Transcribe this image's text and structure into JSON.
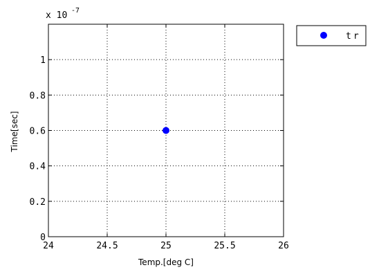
{
  "chart_data": {
    "type": "scatter",
    "title": "",
    "xlabel": "Temp.[deg C]",
    "ylabel": "Time[sec]",
    "xlim": [
      24,
      26
    ],
    "ylim": [
      0,
      1.2
    ],
    "x_ticks": [
      24,
      24.5,
      25,
      25.5,
      26
    ],
    "x_tick_labels": [
      "24",
      "24.5",
      "25",
      "25.5",
      "26"
    ],
    "y_ticks": [
      0,
      0.2,
      0.4,
      0.6,
      0.8,
      1
    ],
    "y_tick_labels": [
      "0",
      "0.2",
      "0.4",
      "0.6",
      "0.8",
      "1"
    ],
    "y_multiplier": {
      "base": "x 10",
      "exponent": "-7"
    },
    "grid": true,
    "grid_style": "dotted",
    "legend_position": "outside-top-right",
    "series": [
      {
        "name": "tr",
        "color": "#0000ff",
        "marker": "filled-circle",
        "points": [
          {
            "x": 25,
            "y": 0.6
          }
        ]
      }
    ]
  }
}
